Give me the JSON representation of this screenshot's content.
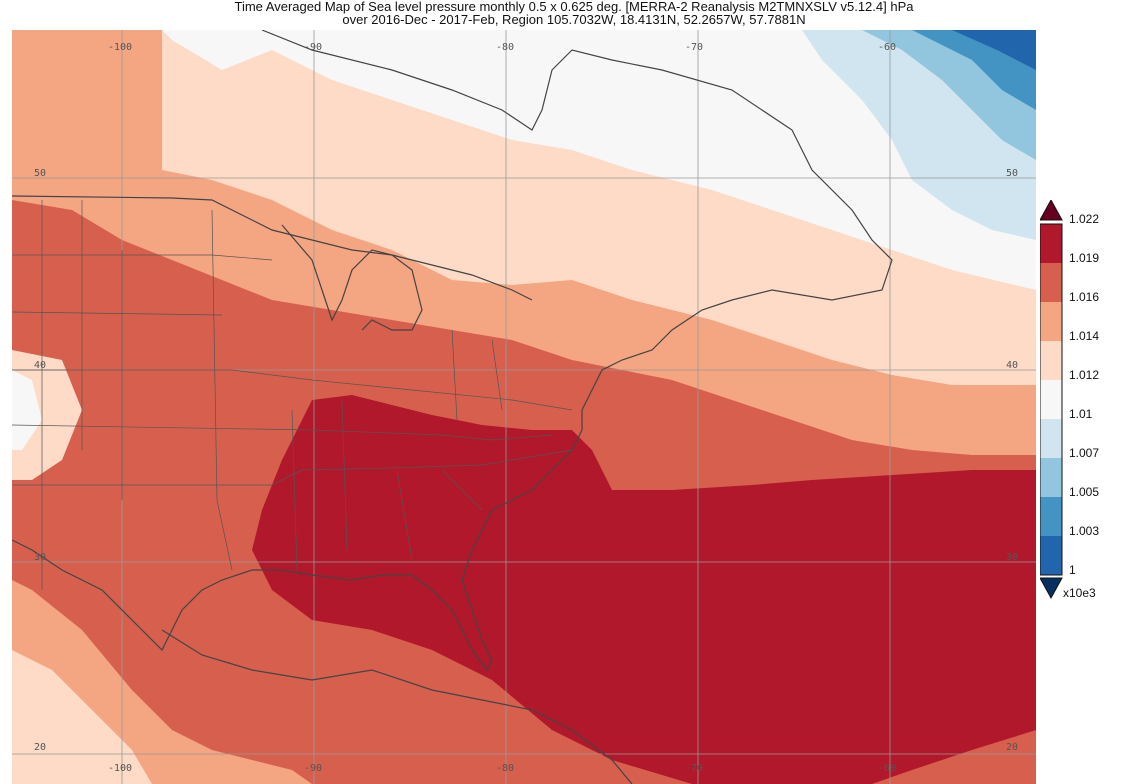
{
  "title": {
    "line1": "Time Averaged Map of Sea level pressure monthly 0.5 x 0.625 deg. [MERRA-2 Reanalysis M2TMNXSLV v5.12.4] hPa",
    "line2": "over 2016-Dec - 2017-Feb, Region 105.7032W, 18.4131N, 52.2657W, 57.7881N"
  },
  "map": {
    "region": {
      "west": -105.7032,
      "south": 18.4131,
      "east": -52.2657,
      "north": 57.7881
    },
    "top_lon_labels": [
      "-100",
      "-90",
      "-80",
      "-70",
      "-60"
    ],
    "bottom_lon_labels": [
      "-100",
      "-90",
      "-80",
      "-70",
      "-60"
    ],
    "left_lat_labels": [
      "50",
      "40",
      "30",
      "20"
    ],
    "right_lat_labels": [
      "50",
      "40",
      "30",
      "20"
    ],
    "grid_lons": [
      -100,
      -90,
      -80,
      -70,
      -60
    ],
    "grid_lats": [
      50,
      40,
      30,
      20
    ]
  },
  "legend": {
    "labels": [
      "1.022",
      "1.019",
      "1.016",
      "1.014",
      "1.012",
      "1.01",
      "1.007",
      "1.005",
      "1.003",
      "1"
    ],
    "unit": "x10e3",
    "colors": {
      "over": "#67001f",
      "c1019_1022": "#b2182b",
      "c1016_1019": "#d6604d",
      "c1014_1016": "#f4a582",
      "c1012_1014": "#fddbc7",
      "c1010_1012": "#f7f7f7",
      "c1007_1010": "#d1e5f0",
      "c1005_1007": "#92c5de",
      "c1003_1005": "#4393c3",
      "c1000_1003": "#2166ac",
      "under": "#053061"
    }
  }
}
